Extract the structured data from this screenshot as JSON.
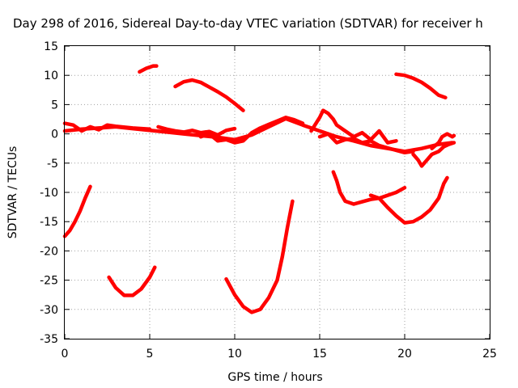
{
  "chart_data": {
    "type": "scatter",
    "title": "Day 298 of 2016, Sidereal Day-to-day VTEC variation (SDTVAR) for receiver h",
    "xlabel": "GPS time / hours",
    "ylabel": "SDTVAR / TECUs",
    "xlim": [
      0,
      25
    ],
    "ylim": [
      -35,
      15
    ],
    "xticks": [
      0,
      5,
      10,
      15,
      20,
      25
    ],
    "yticks": [
      -35,
      -30,
      -25,
      -20,
      -15,
      -10,
      -5,
      0,
      5,
      10,
      15
    ],
    "xtick_labels": [
      "0",
      "5",
      "10",
      "15",
      "20",
      "25"
    ],
    "ytick_labels": [
      "-35",
      "-30",
      "-25",
      "-20",
      "-15",
      "-10",
      "-5",
      "0",
      "5",
      "10",
      "15"
    ],
    "grid": true,
    "legend": "none",
    "color": "#ff0000",
    "segments": [
      [
        [
          0.0,
          -17.5
        ],
        [
          0.3,
          -16.5
        ],
        [
          0.6,
          -15.0
        ],
        [
          0.9,
          -13.2
        ],
        [
          1.2,
          -11.0
        ],
        [
          1.5,
          -9.0
        ]
      ],
      [
        [
          2.6,
          -24.5
        ],
        [
          3.0,
          -26.3
        ],
        [
          3.5,
          -27.6
        ],
        [
          4.0,
          -27.6
        ],
        [
          4.5,
          -26.5
        ],
        [
          5.0,
          -24.5
        ],
        [
          5.3,
          -22.8
        ]
      ],
      [
        [
          4.4,
          10.6
        ],
        [
          4.8,
          11.2
        ],
        [
          5.2,
          11.6
        ],
        [
          5.4,
          11.6
        ]
      ],
      [
        [
          6.5,
          8.1
        ],
        [
          7.0,
          8.9
        ],
        [
          7.5,
          9.2
        ],
        [
          8.0,
          8.8
        ],
        [
          8.5,
          8.0
        ],
        [
          9.0,
          7.2
        ],
        [
          9.5,
          6.3
        ],
        [
          10.0,
          5.2
        ],
        [
          10.5,
          4.0
        ]
      ],
      [
        [
          9.5,
          -24.8
        ],
        [
          10.0,
          -27.5
        ],
        [
          10.5,
          -29.5
        ],
        [
          11.0,
          -30.5
        ],
        [
          11.5,
          -30.0
        ],
        [
          12.0,
          -28.0
        ],
        [
          12.5,
          -25.0
        ],
        [
          12.8,
          -21.0
        ],
        [
          13.1,
          -16.0
        ],
        [
          13.4,
          -11.5
        ]
      ],
      [
        [
          0.0,
          0.5
        ],
        [
          1.0,
          0.8
        ],
        [
          2.0,
          1.0
        ],
        [
          3.0,
          1.2
        ],
        [
          4.0,
          0.9
        ],
        [
          5.0,
          0.6
        ],
        [
          6.0,
          0.3
        ],
        [
          7.0,
          0.0
        ],
        [
          8.0,
          -0.3
        ],
        [
          9.0,
          -0.6
        ],
        [
          10.0,
          -1.0
        ],
        [
          11.0,
          -0.2
        ],
        [
          12.0,
          1.2
        ],
        [
          13.0,
          2.6
        ],
        [
          14.0,
          1.5
        ],
        [
          15.0,
          0.5
        ],
        [
          16.0,
          -0.5
        ],
        [
          17.0,
          -1.2
        ],
        [
          18.0,
          -2.0
        ],
        [
          19.0,
          -2.5
        ],
        [
          20.0,
          -3.0
        ],
        [
          21.0,
          -2.5
        ],
        [
          22.0,
          -1.8
        ],
        [
          22.8,
          -1.5
        ]
      ],
      [
        [
          0.0,
          1.8
        ],
        [
          0.5,
          1.5
        ],
        [
          1.0,
          0.5
        ],
        [
          1.5,
          1.2
        ],
        [
          2.0,
          0.7
        ],
        [
          2.5,
          1.5
        ],
        [
          3.0,
          1.3
        ],
        [
          4.0,
          1.0
        ],
        [
          5.0,
          0.8
        ]
      ],
      [
        [
          5.5,
          1.2
        ],
        [
          6.0,
          0.8
        ],
        [
          6.5,
          0.5
        ],
        [
          7.0,
          0.3
        ],
        [
          7.5,
          0.6
        ],
        [
          8.0,
          0.2
        ],
        [
          8.5,
          0.4
        ],
        [
          9.0,
          -0.2
        ],
        [
          9.5,
          0.6
        ],
        [
          10.0,
          0.9
        ]
      ],
      [
        [
          8.0,
          -0.5
        ],
        [
          8.5,
          0.0
        ],
        [
          9.0,
          -1.2
        ],
        [
          9.5,
          -1.0
        ],
        [
          10.0,
          -1.5
        ],
        [
          10.5,
          -1.2
        ],
        [
          11.0,
          0.2
        ],
        [
          11.5,
          1.0
        ],
        [
          12.0,
          1.6
        ],
        [
          12.5,
          2.2
        ],
        [
          13.0,
          2.8
        ],
        [
          13.5,
          2.4
        ],
        [
          14.0,
          1.8
        ]
      ],
      [
        [
          14.5,
          0.5
        ],
        [
          15.0,
          2.8
        ],
        [
          15.2,
          4.0
        ],
        [
          15.5,
          3.5
        ],
        [
          15.8,
          2.5
        ],
        [
          16.0,
          1.5
        ],
        [
          16.5,
          0.5
        ],
        [
          17.0,
          -0.5
        ],
        [
          17.5,
          0.2
        ],
        [
          18.0,
          -1.0
        ],
        [
          18.5,
          0.5
        ],
        [
          19.0,
          -1.5
        ],
        [
          19.5,
          -1.2
        ]
      ],
      [
        [
          15.0,
          -0.5
        ],
        [
          15.5,
          0.0
        ],
        [
          16.0,
          -1.5
        ],
        [
          16.5,
          -1.0
        ],
        [
          17.0,
          -0.8
        ],
        [
          17.5,
          -1.5
        ],
        [
          18.0,
          -1.2
        ],
        [
          18.5,
          -2.0
        ],
        [
          19.0,
          -2.4
        ],
        [
          19.5,
          -2.8
        ],
        [
          20.0,
          -3.2
        ],
        [
          20.5,
          -3.0
        ]
      ],
      [
        [
          19.5,
          10.2
        ],
        [
          20.0,
          10.0
        ],
        [
          20.5,
          9.5
        ],
        [
          21.0,
          8.8
        ],
        [
          21.5,
          7.8
        ],
        [
          22.0,
          6.6
        ],
        [
          22.4,
          6.2
        ]
      ],
      [
        [
          15.8,
          -6.5
        ],
        [
          16.0,
          -8.0
        ],
        [
          16.2,
          -10.0
        ],
        [
          16.5,
          -11.5
        ],
        [
          17.0,
          -12.0
        ],
        [
          17.5,
          -11.6
        ],
        [
          18.0,
          -11.2
        ],
        [
          18.5,
          -11.0
        ],
        [
          19.0,
          -10.5
        ],
        [
          19.5,
          -10.0
        ],
        [
          20.0,
          -9.2
        ]
      ],
      [
        [
          18.0,
          -10.5
        ],
        [
          18.5,
          -11.0
        ],
        [
          19.0,
          -12.6
        ],
        [
          19.5,
          -14.0
        ],
        [
          20.0,
          -15.2
        ],
        [
          20.5,
          -15.0
        ],
        [
          21.0,
          -14.2
        ],
        [
          21.5,
          -13.0
        ],
        [
          22.0,
          -11.0
        ],
        [
          22.3,
          -8.5
        ],
        [
          22.5,
          -7.5
        ]
      ],
      [
        [
          20.5,
          -3.5
        ],
        [
          20.8,
          -4.5
        ],
        [
          21.0,
          -5.5
        ],
        [
          21.3,
          -4.5
        ],
        [
          21.6,
          -3.5
        ],
        [
          22.0,
          -3.0
        ],
        [
          22.3,
          -2.2
        ],
        [
          22.6,
          -1.8
        ],
        [
          22.9,
          -1.5
        ]
      ],
      [
        [
          21.6,
          -2.5
        ],
        [
          22.0,
          -1.5
        ],
        [
          22.2,
          -0.5
        ],
        [
          22.5,
          0.0
        ],
        [
          22.8,
          -0.5
        ],
        [
          22.9,
          -0.3
        ]
      ]
    ]
  }
}
